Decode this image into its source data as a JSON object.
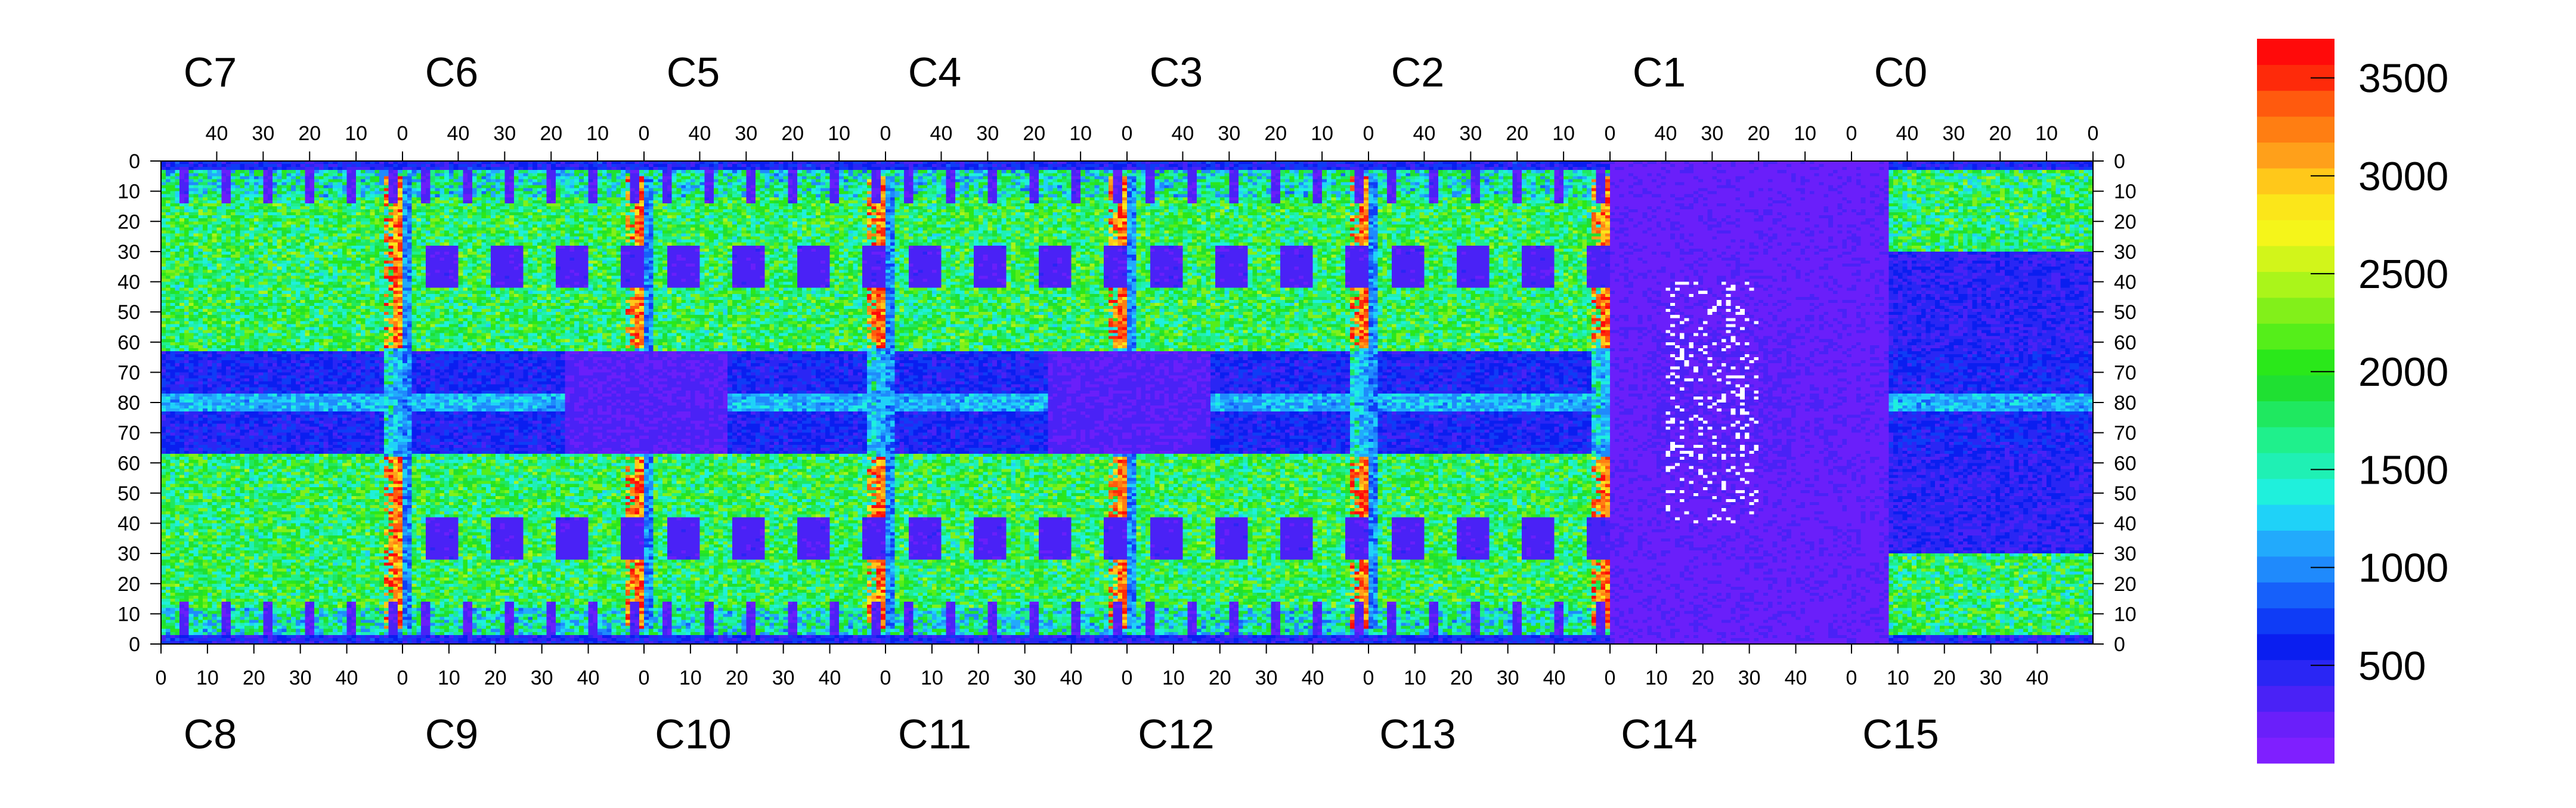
{
  "chart_data": {
    "type": "heatmap",
    "title": "",
    "xlabel": "",
    "ylabel": "",
    "top_chip_labels": [
      "C7",
      "C6",
      "C5",
      "C4",
      "C3",
      "C2",
      "C1",
      "C0"
    ],
    "bottom_chip_labels": [
      "C8",
      "C9",
      "C10",
      "C11",
      "C12",
      "C13",
      "C14",
      "C15"
    ],
    "top_x_ticks": [
      40,
      30,
      20,
      10,
      0
    ],
    "bottom_x_ticks": [
      0,
      10,
      20,
      30,
      40
    ],
    "chip_columns": 52,
    "rows_per_half": 80,
    "y_ticks": [
      0,
      10,
      20,
      30,
      40,
      50,
      60,
      70,
      80,
      70,
      60,
      50,
      40,
      30,
      20,
      10,
      0
    ],
    "colorbar": {
      "min": 0,
      "max": 3700,
      "tick_values": [
        500,
        1000,
        1500,
        2000,
        2500,
        3000,
        3500
      ],
      "tick_labels": [
        "500",
        "1000",
        "1500",
        "2000",
        "2500",
        "3000",
        "3500"
      ],
      "palette": [
        "#7f1fff",
        "#6a1ffa",
        "#4a22f6",
        "#2a26f4",
        "#0a1ef0",
        "#0f3cf6",
        "#1660fa",
        "#1f8afc",
        "#22aafc",
        "#1fd2f8",
        "#1ff0dc",
        "#1ff0b4",
        "#1ff08c",
        "#1fe860",
        "#1fe032",
        "#2ae81a",
        "#55ee1a",
        "#82f01a",
        "#aaf51a",
        "#d2f51a",
        "#f5f51a",
        "#fbe61a",
        "#ffc81a",
        "#ffa01a",
        "#ff7e12",
        "#ff5a0e",
        "#fe2a0a",
        "#ff0a0a"
      ]
    },
    "series_values_description_note": ""
  }
}
